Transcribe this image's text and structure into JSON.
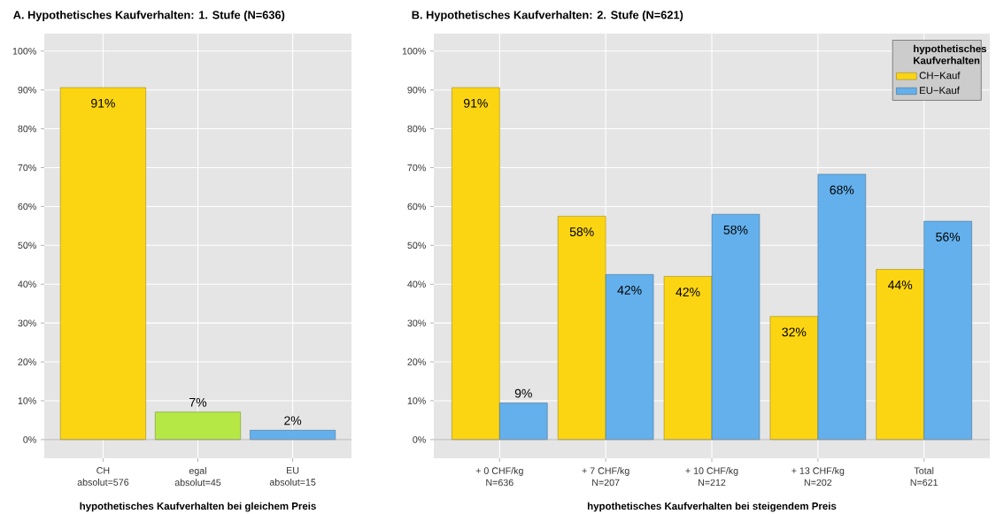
{
  "chart_data": [
    {
      "type": "bar",
      "title": "A. Hypothetisches Kaufverhalten: 1. Stufe (N=636)",
      "xlabel": "hypothetisches Kaufverhalten bei gleichem Preis",
      "categories": [
        "CH\nabsolut=576",
        "egal\nabsolut=45",
        "EU\nabsolut=15"
      ],
      "values": [
        90.6,
        7.1,
        2.4
      ],
      "colors": [
        "#fcd512",
        "#b5e844",
        "#64b0ec"
      ],
      "value_labels": [
        "91%",
        "7%",
        "2%"
      ],
      "ylim": [
        -4.8,
        104.5
      ],
      "yticks": [
        {
          "value": 0,
          "label": "0%"
        },
        {
          "value": 10,
          "label": "10%"
        },
        {
          "value": 20,
          "label": "20%"
        },
        {
          "value": 30,
          "label": "30%"
        },
        {
          "value": 40,
          "label": "40%"
        },
        {
          "value": 50,
          "label": "50%"
        },
        {
          "value": 60,
          "label": "60%"
        },
        {
          "value": 70,
          "label": "70%"
        },
        {
          "value": 80,
          "label": "80%"
        },
        {
          "value": 90,
          "label": "90%"
        },
        {
          "value": 100,
          "label": "100%"
        }
      ],
      "ref_lines": [
        {
          "axis": "y",
          "value": 0,
          "color": "#999999"
        }
      ],
      "grid": true
    },
    {
      "type": "bar",
      "title": "B. Hypothetisches Kaufverhalten: 2. Stufe (N=621)",
      "xlabel": "hypothetisches Kaufverhalten bei steigendem Preis",
      "legend_title": "hypothetisches Kaufverhalten",
      "categories": [
        "+  0 CHF/kg\nN=636",
        "+  7 CHF/kg\nN=207",
        "+ 10 CHF/kg\nN=212",
        "+ 13 CHF/kg\nN=202",
        "Total\nN=621"
      ],
      "series": [
        {
          "name": "CH−Kauf",
          "color": "#fcd512",
          "values": [
            90.6,
            57.5,
            42.0,
            31.7,
            43.8
          ],
          "value_labels": [
            "91%",
            "58%",
            "42%",
            "32%",
            "44%"
          ]
        },
        {
          "name": "EU−Kauf",
          "color": "#64b0ec",
          "values": [
            9.4,
            42.5,
            58.0,
            68.3,
            56.2
          ],
          "value_labels": [
            "9%",
            "42%",
            "58%",
            "68%",
            "56%"
          ]
        }
      ],
      "ylim": [
        -4.8,
        104.5
      ],
      "yticks": [
        {
          "value": 0,
          "label": "0%"
        },
        {
          "value": 10,
          "label": "10%"
        },
        {
          "value": 20,
          "label": "20%"
        },
        {
          "value": 30,
          "label": "30%"
        },
        {
          "value": 40,
          "label": "40%"
        },
        {
          "value": 50,
          "label": "50%"
        },
        {
          "value": 60,
          "label": "60%"
        },
        {
          "value": 70,
          "label": "70%"
        },
        {
          "value": 80,
          "label": "80%"
        },
        {
          "value": 90,
          "label": "90%"
        },
        {
          "value": 100,
          "label": "100%"
        }
      ],
      "ref_lines": [
        {
          "axis": "y",
          "value": 0,
          "color": "#999999"
        }
      ],
      "grid": true,
      "legend": "top right"
    }
  ]
}
